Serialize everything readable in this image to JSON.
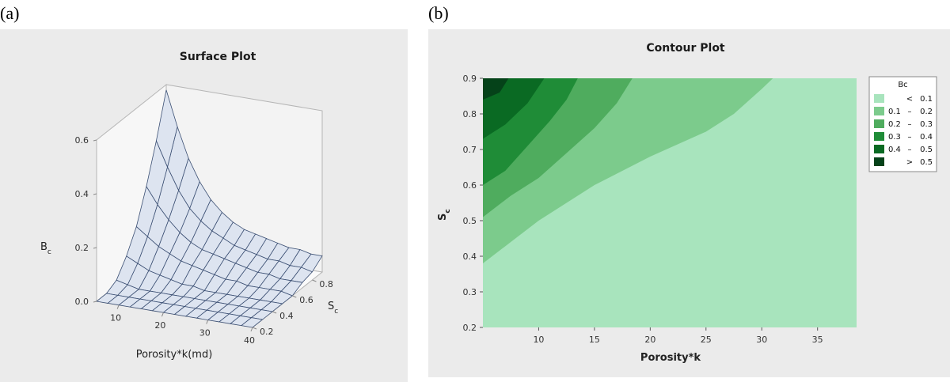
{
  "panels": {
    "a_label": "(a)",
    "b_label": "(b)"
  },
  "chart_data": [
    {
      "type": "surface",
      "title": "Surface Plot",
      "xlabel": "Porosity*k(md)",
      "ylabel": "S",
      "ylabel_sub": "c",
      "zlabel": "B",
      "zlabel_sub": "c",
      "xlim": [
        5,
        40
      ],
      "ylim": [
        0.2,
        0.9
      ],
      "zlim": [
        0.0,
        0.6
      ],
      "xticks": [
        "10",
        "20",
        "30",
        "40"
      ],
      "yticks": [
        "0.2",
        "0.4",
        "0.6",
        "0.8"
      ],
      "zticks": [
        "0.0",
        "0.2",
        "0.4",
        "0.6"
      ],
      "grid_x": [
        5,
        7.5,
        10,
        12.5,
        15,
        17.5,
        20,
        22.5,
        25,
        27.5,
        30,
        32.5,
        35,
        37.5,
        40
      ],
      "grid_y": [
        0.2,
        0.3,
        0.4,
        0.5,
        0.6,
        0.7,
        0.8,
        0.9
      ],
      "grid_z": [
        [
          0.0,
          0.0,
          0.0,
          0.0,
          0.0,
          0.0,
          0.0,
          0.0,
          0.0,
          0.0,
          0.0,
          0.0,
          0.0,
          0.0,
          0.0
        ],
        [
          0.0,
          0.0,
          0.0,
          0.0,
          0.0,
          0.0,
          0.0,
          0.0,
          0.0,
          0.0,
          0.0,
          0.0,
          0.0,
          0.0,
          0.0
        ],
        [
          0.02,
          0.01,
          0.0,
          0.0,
          0.0,
          0.0,
          0.0,
          0.0,
          0.0,
          0.0,
          0.0,
          0.0,
          0.0,
          0.0,
          0.0
        ],
        [
          0.08,
          0.06,
          0.04,
          0.03,
          0.02,
          0.01,
          0.01,
          0.0,
          0.0,
          0.0,
          0.0,
          0.0,
          0.0,
          0.0,
          0.0
        ],
        [
          0.16,
          0.13,
          0.1,
          0.08,
          0.06,
          0.05,
          0.04,
          0.03,
          0.02,
          0.02,
          0.01,
          0.01,
          0.01,
          0.01,
          0.0
        ],
        [
          0.28,
          0.22,
          0.17,
          0.13,
          0.1,
          0.08,
          0.07,
          0.06,
          0.05,
          0.04,
          0.03,
          0.03,
          0.02,
          0.02,
          0.02
        ],
        [
          0.42,
          0.33,
          0.25,
          0.19,
          0.15,
          0.12,
          0.1,
          0.08,
          0.07,
          0.06,
          0.05,
          0.05,
          0.04,
          0.04,
          0.03
        ],
        [
          0.58,
          0.45,
          0.34,
          0.26,
          0.2,
          0.16,
          0.13,
          0.11,
          0.1,
          0.09,
          0.08,
          0.07,
          0.07,
          0.06,
          0.06
        ]
      ],
      "surface_color": "#dde4f0",
      "mesh_color": "#3b4f73"
    },
    {
      "type": "contour",
      "title": "Contour Plot",
      "xlabel": "Porosity*k",
      "ylabel": "S",
      "ylabel_sub": "c",
      "xlim": [
        5,
        38.5
      ],
      "ylim": [
        0.2,
        0.9
      ],
      "xticks": [
        "10",
        "15",
        "20",
        "25",
        "30",
        "35"
      ],
      "yticks": [
        "0.2",
        "0.3",
        "0.4",
        "0.5",
        "0.6",
        "0.7",
        "0.8",
        "0.9"
      ],
      "legend_title": "Bc",
      "legend_position": "right",
      "levels": [
        {
          "lo": "<",
          "hi": "0.1",
          "color": "#a8e4bd"
        },
        {
          "lo": "0.1",
          "hi": "0.2",
          "color": "#7ccb8c"
        },
        {
          "lo": "0.2",
          "hi": "0.3",
          "color": "#4fac5e"
        },
        {
          "lo": "0.3",
          "hi": "0.4",
          "color": "#1f8c37"
        },
        {
          "lo": "0.4",
          "hi": "0.5",
          "color": "#0a6a23"
        },
        {
          "lo": ">",
          "hi": "0.5",
          "color": "#054219"
        }
      ],
      "boundaries": [
        {
          "level": "0.1",
          "points": [
            [
              5,
              0.38
            ],
            [
              7.5,
              0.44
            ],
            [
              10,
              0.5
            ],
            [
              15,
              0.6
            ],
            [
              20,
              0.68
            ],
            [
              25,
              0.75
            ],
            [
              27.5,
              0.8
            ],
            [
              30,
              0.87
            ],
            [
              31,
              0.9
            ]
          ]
        },
        {
          "level": "0.2",
          "points": [
            [
              5,
              0.51
            ],
            [
              7.5,
              0.57
            ],
            [
              10,
              0.62
            ],
            [
              12.5,
              0.69
            ],
            [
              15,
              0.76
            ],
            [
              17,
              0.83
            ],
            [
              18.4,
              0.9
            ]
          ]
        },
        {
          "level": "0.3",
          "points": [
            [
              5,
              0.6
            ],
            [
              7,
              0.64
            ],
            [
              9,
              0.71
            ],
            [
              11,
              0.78
            ],
            [
              12.5,
              0.84
            ],
            [
              13.5,
              0.9
            ]
          ]
        },
        {
          "level": "0.4",
          "points": [
            [
              5,
              0.73
            ],
            [
              7,
              0.77
            ],
            [
              9,
              0.83
            ],
            [
              10.5,
              0.9
            ]
          ]
        },
        {
          "level": "0.5",
          "points": [
            [
              5,
              0.84
            ],
            [
              6.5,
              0.86
            ],
            [
              7.3,
              0.9
            ]
          ]
        }
      ]
    }
  ]
}
